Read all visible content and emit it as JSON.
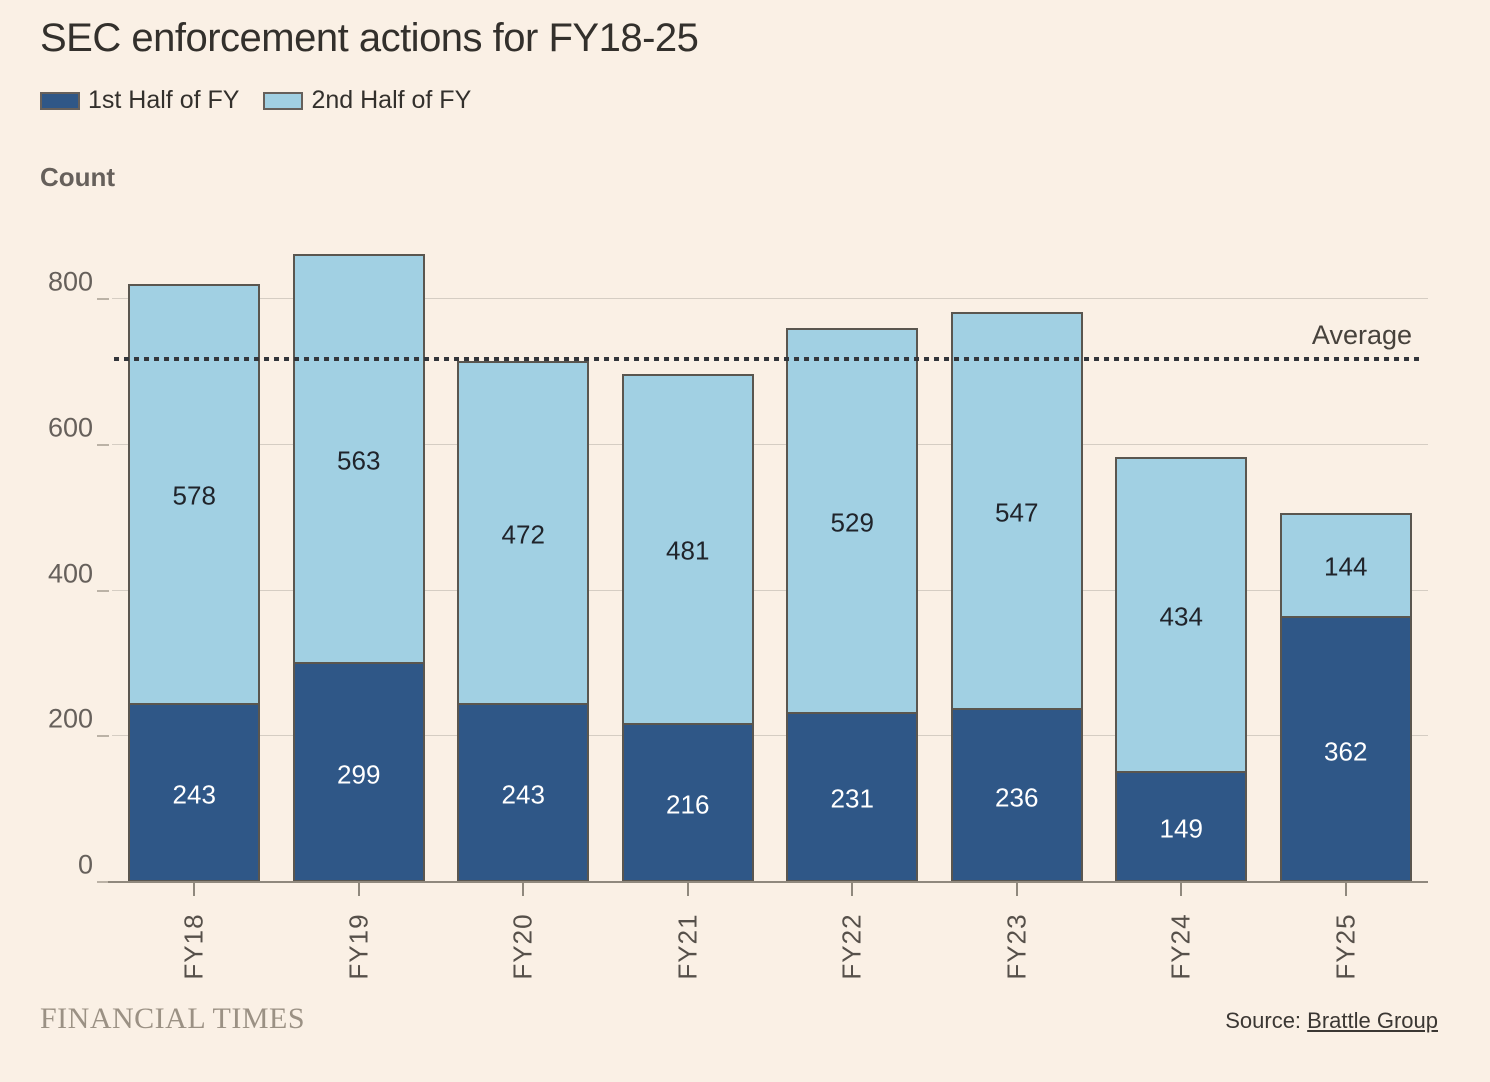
{
  "title": "SEC enforcement actions for FY18-25",
  "chart_data": {
    "type": "bar",
    "stacked": true,
    "title": "SEC enforcement actions for FY18-25",
    "ylabel": "Count",
    "xlabel": "",
    "categories": [
      "FY18",
      "FY19",
      "FY20",
      "FY21",
      "FY22",
      "FY23",
      "FY24",
      "FY25"
    ],
    "series": [
      {
        "name": "1st Half of FY",
        "color": "#2F5787",
        "label_color": "#FFFFFF",
        "values": [
          243,
          299,
          243,
          216,
          231,
          236,
          149,
          362
        ]
      },
      {
        "name": "2nd Half of FY",
        "color": "#A1D0E3",
        "label_color": "#20242B",
        "values": [
          578,
          563,
          472,
          481,
          529,
          547,
          434,
          144
        ]
      }
    ],
    "yticks": [
      0,
      200,
      400,
      600,
      800
    ],
    "ylim": [
      0,
      865
    ],
    "grid": "horizontal",
    "legend_position": "top",
    "average_line": {
      "label": "Average",
      "value": 716
    }
  },
  "footer": {
    "brand": "FINANCIAL TIMES",
    "source_prefix": "Source: ",
    "source_link": "Brattle Group"
  }
}
